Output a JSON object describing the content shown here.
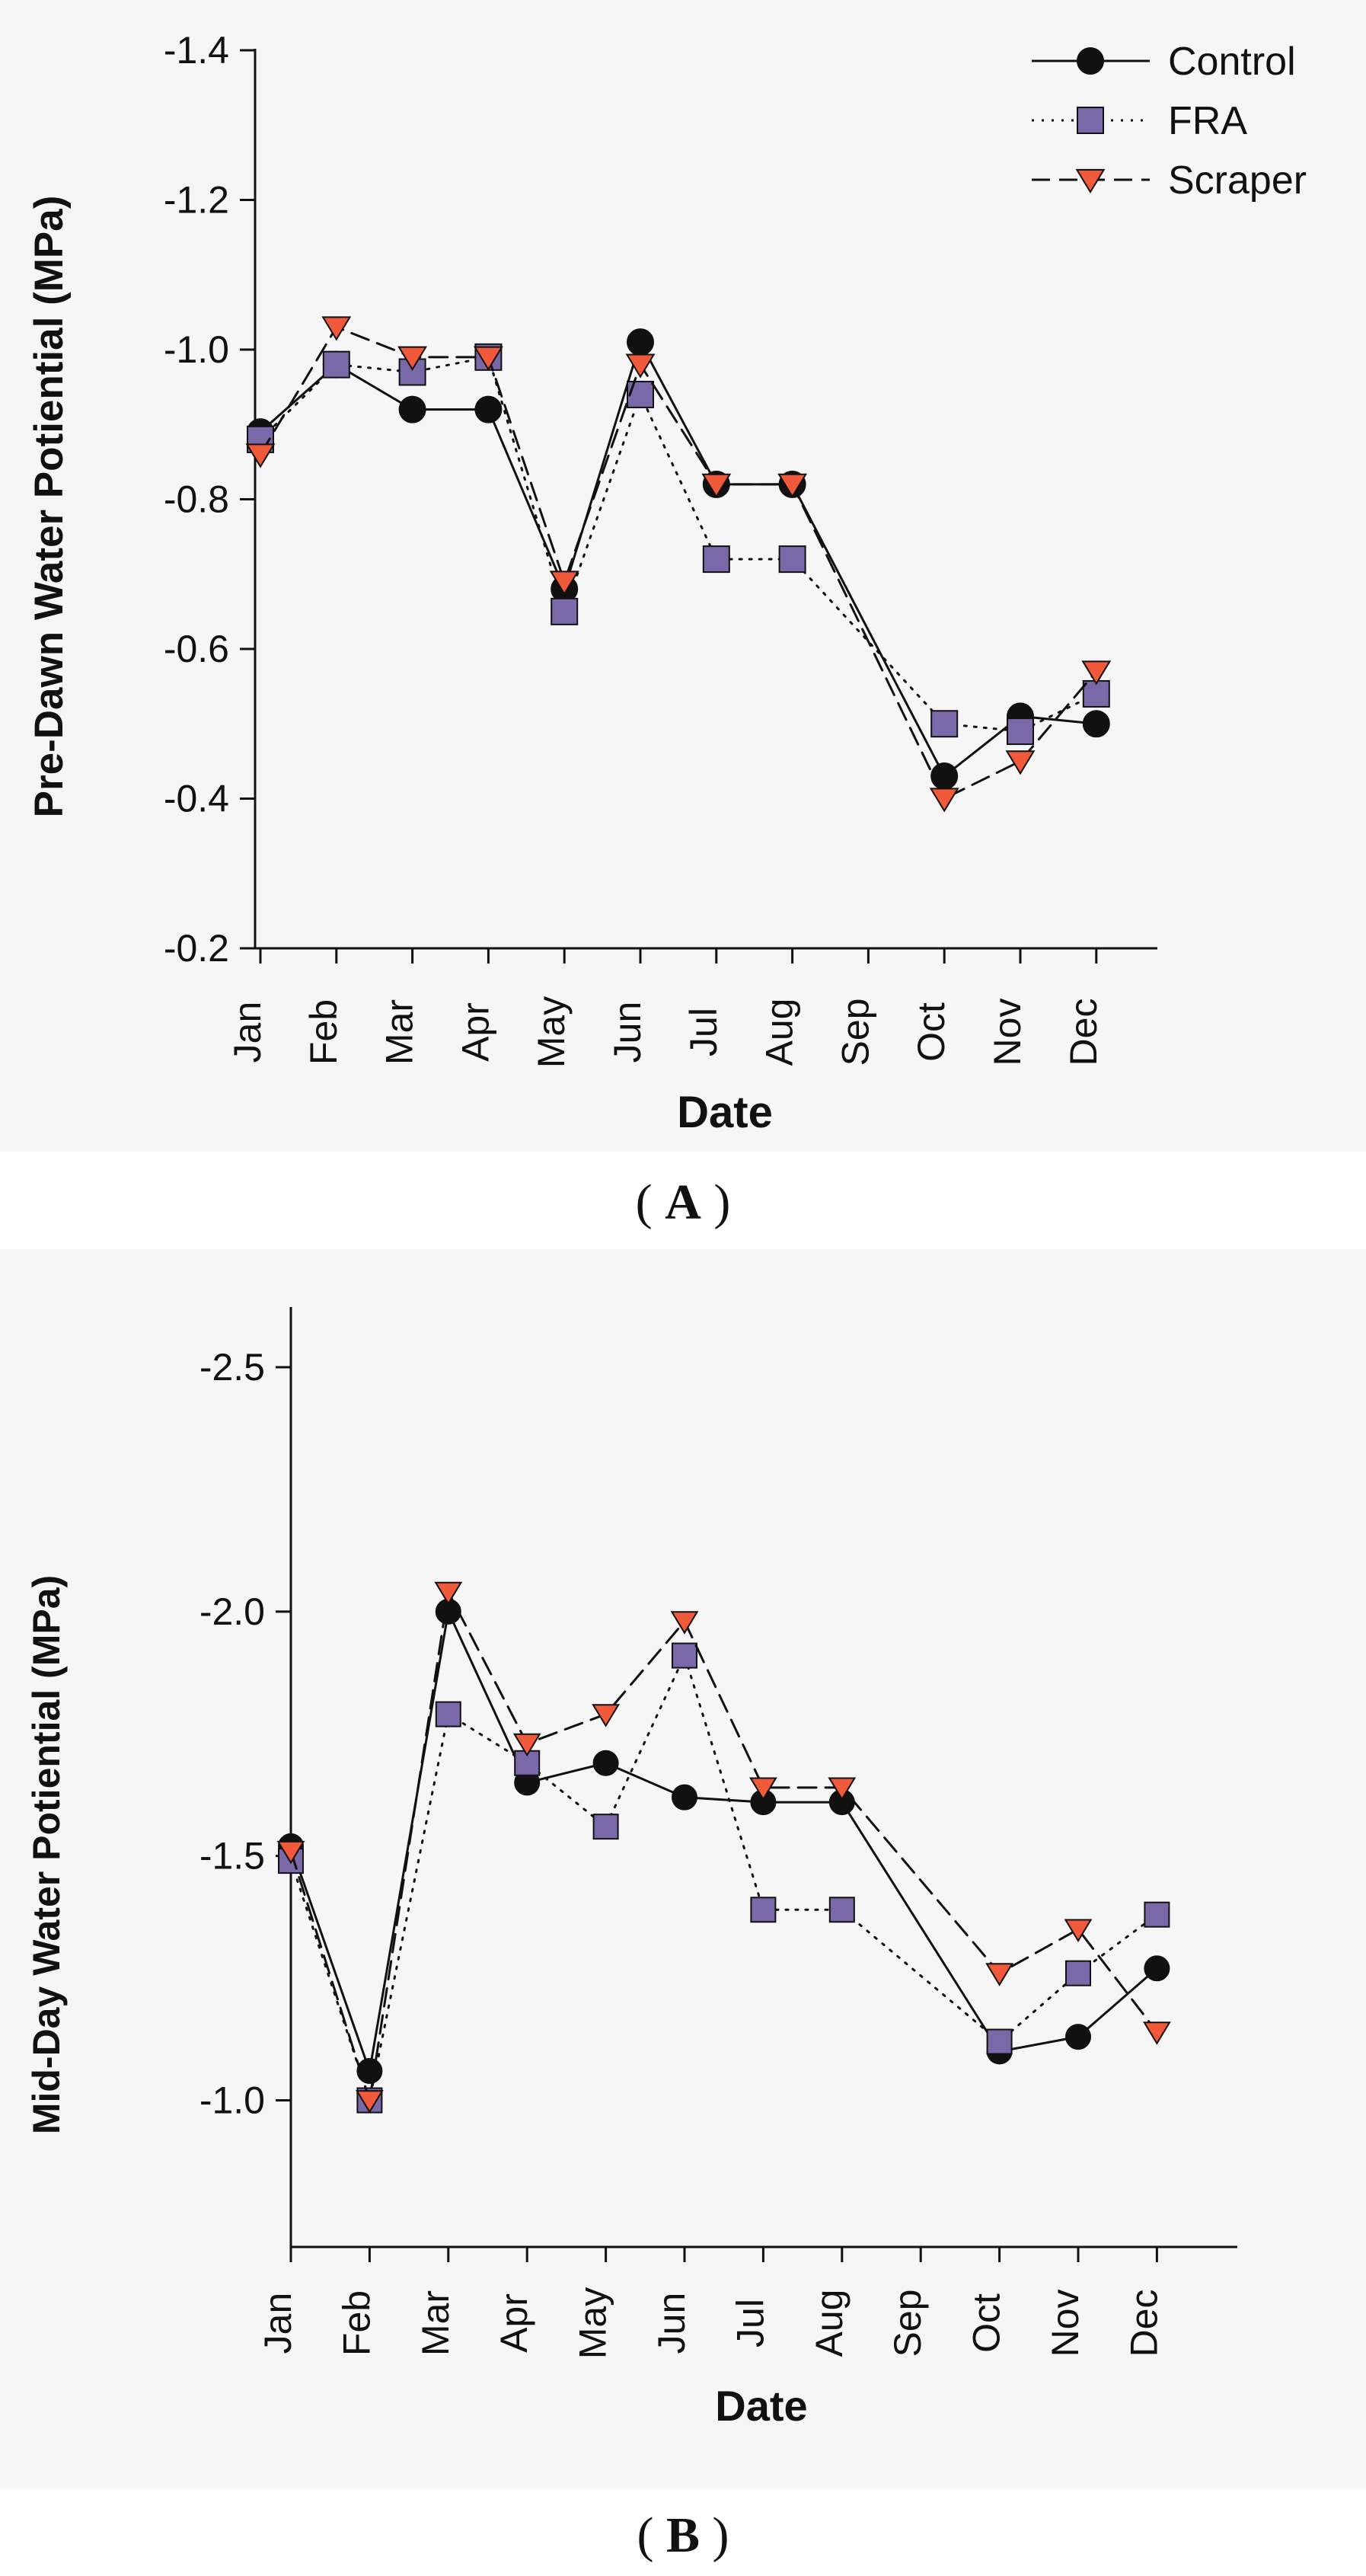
{
  "chart_data": [
    {
      "type": "line",
      "panel": "A",
      "title": "",
      "xlabel": "Date",
      "ylabel": "Pre-Dawn Water Potiential (MPa)",
      "categories": [
        "Jan",
        "Feb",
        "Mar",
        "Apr",
        "May",
        "Jun",
        "Jul",
        "Aug",
        "Sep",
        "Oct",
        "Nov",
        "Dec"
      ],
      "ylim": [
        -0.2,
        -1.4
      ],
      "yticks": [
        -0.2,
        -0.4,
        -0.6,
        -0.8,
        -1.0,
        -1.2,
        -1.4
      ],
      "ytick_labels": [
        "-0.2",
        "-0.4",
        "-0.6",
        "-0.8",
        "-1.0",
        "-1.2",
        "-1.4"
      ],
      "legend": {
        "position": "top-right",
        "entries": [
          "Control",
          "FRA",
          "Scraper"
        ]
      },
      "series": [
        {
          "name": "Control",
          "values": [
            -0.89,
            -0.98,
            -0.92,
            -0.92,
            -0.68,
            -1.01,
            -0.82,
            -0.82,
            null,
            -0.43,
            -0.51,
            -0.5
          ],
          "color": "#111111",
          "fill": "#111111",
          "line_style": "solid",
          "marker": "circle"
        },
        {
          "name": "FRA",
          "values": [
            -0.88,
            -0.98,
            -0.97,
            -0.99,
            -0.65,
            -0.94,
            -0.72,
            -0.72,
            null,
            -0.5,
            -0.49,
            -0.54
          ],
          "color": "#111111",
          "fill": "#7b68a8",
          "line_style": "dotted",
          "marker": "square"
        },
        {
          "name": "Scraper",
          "values": [
            -0.86,
            -1.03,
            -0.99,
            -0.99,
            -0.69,
            -0.98,
            -0.82,
            -0.82,
            null,
            -0.4,
            -0.45,
            -0.57
          ],
          "color": "#111111",
          "fill": "#f05a3a",
          "line_style": "dashed",
          "marker": "triangle-down"
        }
      ]
    },
    {
      "type": "line",
      "panel": "B",
      "title": "",
      "xlabel": "Date",
      "ylabel": "Mid-Day Water Potiential (MPa)",
      "categories": [
        "Jan",
        "Feb",
        "Mar",
        "Apr",
        "May",
        "Jun",
        "Jul",
        "Aug",
        "Sep",
        "Oct",
        "Nov",
        "Dec"
      ],
      "ylim": [
        -0.7,
        -2.62
      ],
      "yticks": [
        -1.0,
        -1.5,
        -2.0,
        -2.5
      ],
      "ytick_labels": [
        "-1.0",
        "-1.5",
        "-2.0",
        "-2.5"
      ],
      "legend": null,
      "series": [
        {
          "name": "Control",
          "values": [
            -1.52,
            -1.06,
            -2.0,
            -1.65,
            -1.69,
            -1.62,
            -1.61,
            -1.61,
            null,
            -1.1,
            -1.13,
            -1.27
          ],
          "color": "#111111",
          "fill": "#111111",
          "line_style": "solid",
          "marker": "circle"
        },
        {
          "name": "FRA",
          "values": [
            -1.49,
            -1.0,
            -1.79,
            -1.69,
            -1.56,
            -1.91,
            -1.39,
            -1.39,
            null,
            -1.12,
            -1.26,
            -1.38
          ],
          "color": "#111111",
          "fill": "#7b68a8",
          "line_style": "dotted",
          "marker": "square"
        },
        {
          "name": "Scraper",
          "values": [
            -1.51,
            -1.0,
            -2.04,
            -1.73,
            -1.79,
            -1.98,
            -1.64,
            -1.64,
            null,
            -1.26,
            -1.35,
            -1.14
          ],
          "color": "#111111",
          "fill": "#f05a3a",
          "line_style": "dashed",
          "marker": "triangle-down"
        }
      ]
    }
  ],
  "captions": {
    "a": {
      "open": "(",
      "letter": "A",
      "close": ")"
    },
    "b": {
      "open": "(",
      "letter": "B",
      "close": ")"
    }
  }
}
